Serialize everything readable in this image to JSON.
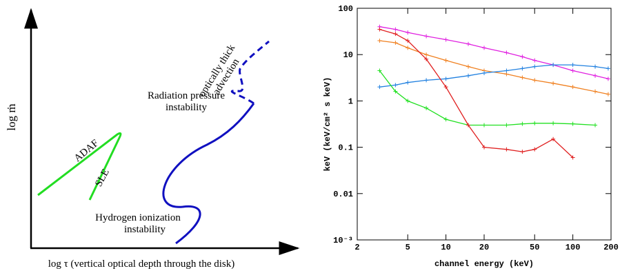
{
  "schematic": {
    "x_label": "log τ (vertical optical depth through the disk)",
    "y_label": "log ṁ",
    "annotations": [
      [
        "optically thick",
        "advection"
      ],
      [
        "Radiation pressure",
        "instability"
      ],
      [
        "ADAF"
      ],
      [
        "SLE"
      ],
      [
        "Hydrogen ionization",
        "instability"
      ]
    ]
  },
  "chart_data": {
    "type": "line",
    "xlabel": "channel energy (keV)",
    "ylabel": "keV (keV/cm² s keV)",
    "xlog": true,
    "ylog": true,
    "xlim": [
      2,
      200
    ],
    "ylim": [
      0.001,
      100
    ],
    "xticks": [
      2,
      5,
      10,
      20,
      50,
      100,
      200
    ],
    "yticks": [
      {
        "value": 0.001,
        "label": "10⁻³"
      },
      0.01,
      0.1,
      1,
      10,
      100
    ],
    "x": [
      3,
      4,
      5,
      7,
      10,
      15,
      20,
      30,
      40,
      50,
      70,
      100,
      150,
      190
    ],
    "series": [
      {
        "color": "#e020e0",
        "values": [
          40,
          35,
          30,
          25,
          21,
          17,
          14,
          11,
          9,
          7.5,
          6,
          4.5,
          3.5,
          3
        ]
      },
      {
        "color": "#f08020",
        "values": [
          20,
          18,
          14,
          10,
          7.5,
          5.5,
          4.5,
          3.8,
          3.2,
          2.8,
          2.4,
          2,
          1.6,
          1.4
        ]
      },
      {
        "color": "#2080e0",
        "values": [
          2,
          2.2,
          2.5,
          2.8,
          3,
          3.5,
          4,
          4.5,
          5,
          5.5,
          6,
          6,
          5.5,
          5
        ]
      },
      {
        "color": "#20e020",
        "values": [
          4.5,
          1.6,
          1.0,
          0.7,
          0.4,
          0.3,
          0.3,
          0.3,
          0.32,
          0.33,
          0.33,
          0.32,
          0.3,
          null
        ]
      },
      {
        "color": "#e02020",
        "values": [
          35,
          28,
          20,
          8,
          2,
          0.3,
          0.1,
          0.09,
          0.08,
          0.09,
          0.15,
          0.06,
          null,
          null
        ]
      }
    ]
  }
}
